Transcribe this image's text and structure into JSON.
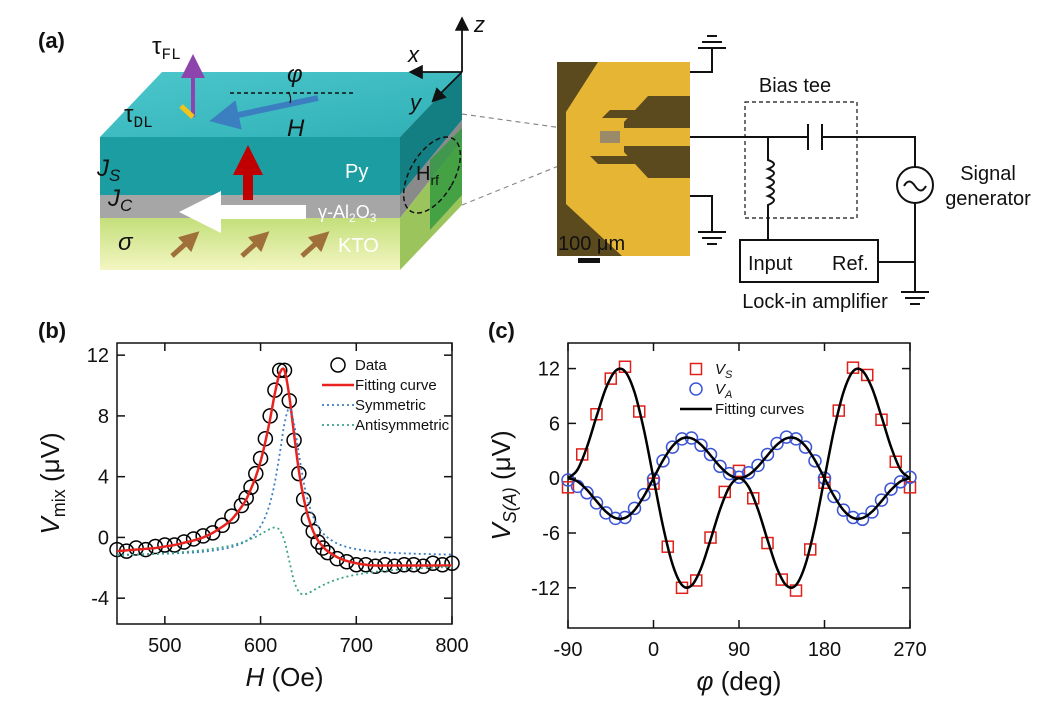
{
  "panels": [
    "(a)",
    "(b)",
    "(c)"
  ],
  "diagram": {
    "tau_fl": {
      "symbol": "τ",
      "sub": "FL"
    },
    "tau_dl": {
      "symbol": "τ",
      "sub": "DL"
    },
    "phi": "φ",
    "h": "H",
    "z": "z",
    "x": "x",
    "y": "y",
    "js": {
      "symbol": "J",
      "sub": "S"
    },
    "jc": {
      "symbol": "J",
      "sub": "C"
    },
    "py": "Py",
    "hrf": {
      "symbol": "H",
      "sub": "rf"
    },
    "alox": {
      "prefix": "γ-Al",
      "sub1": "2",
      "mid": "O",
      "sub2": "3"
    },
    "sigma": "σ",
    "kto": "KTO",
    "scale_bar": "100 μm",
    "bias_tee": "Bias tee",
    "signal_generator": [
      "Signal",
      "generator"
    ],
    "input": "Input",
    "ref": "Ref.",
    "lock_in": "Lock-in amplifier"
  },
  "chart_data": [
    {
      "type": "line",
      "xlabel": {
        "symbol": "H",
        "unit": "(Oe)"
      },
      "ylabel": {
        "symbol": "V",
        "sub": "mix",
        "unit": "(μV)"
      },
      "x": [
        450,
        460,
        470,
        480,
        490,
        500,
        510,
        520,
        530,
        540,
        550,
        560,
        570,
        580,
        585,
        590,
        595,
        600,
        605,
        610,
        615,
        620,
        625,
        630,
        635,
        640,
        645,
        650,
        655,
        660,
        665,
        670,
        680,
        690,
        700,
        710,
        720,
        730,
        740,
        750,
        760,
        770,
        780,
        790,
        800
      ],
      "series": [
        {
          "name": "Data",
          "color": "#000000",
          "marker": "circle",
          "values": [
            -0.8,
            -0.9,
            -0.7,
            -0.8,
            -0.6,
            -0.5,
            -0.5,
            -0.3,
            -0.1,
            0.1,
            0.3,
            0.8,
            1.4,
            2.1,
            2.6,
            3.3,
            4.2,
            5.2,
            6.5,
            8.0,
            9.7,
            11.0,
            11.0,
            9.0,
            6.4,
            4.2,
            2.5,
            1.2,
            0.4,
            -0.3,
            -0.7,
            -1.0,
            -1.4,
            -1.6,
            -1.8,
            -1.8,
            -1.9,
            -1.8,
            -1.9,
            -1.8,
            -1.8,
            -1.9,
            -1.7,
            -1.8,
            -1.7
          ]
        },
        {
          "name": "Fitting curve",
          "color": "#e8231f",
          "line": "solid",
          "values": [
            -0.9,
            -0.85,
            -0.8,
            -0.75,
            -0.7,
            -0.6,
            -0.5,
            -0.35,
            -0.2,
            0.0,
            0.3,
            0.7,
            1.2,
            2.0,
            2.5,
            3.2,
            4.0,
            5.0,
            6.3,
            7.8,
            9.5,
            10.8,
            11.0,
            9.3,
            6.8,
            4.4,
            2.6,
            1.3,
            0.4,
            -0.2,
            -0.6,
            -0.9,
            -1.3,
            -1.55,
            -1.7,
            -1.8,
            -1.85,
            -1.85,
            -1.85,
            -1.85,
            -1.85,
            -1.85,
            -1.85,
            -1.85,
            -1.85
          ]
        },
        {
          "name": "Symmetric",
          "color": "#3d7fc4",
          "line": "dotted",
          "values": [
            -1.13,
            -1.13,
            -1.12,
            -1.1,
            -1.09,
            -1.07,
            -1.05,
            -1.02,
            -0.99,
            -0.94,
            -0.87,
            -0.77,
            -0.63,
            -0.4,
            -0.23,
            -0.01,
            0.3,
            0.74,
            1.37,
            2.29,
            3.65,
            5.5,
            7.5,
            8.5,
            7.5,
            5.5,
            3.65,
            2.29,
            1.37,
            0.74,
            0.3,
            -0.01,
            -0.4,
            -0.63,
            -0.77,
            -0.87,
            -0.94,
            -0.99,
            -1.02,
            -1.05,
            -1.07,
            -1.09,
            -1.1,
            -1.12,
            -1.13
          ]
        },
        {
          "name": "Antisymmetric",
          "color": "#3aa38a",
          "line": "dotted",
          "values": [
            -1.19,
            -1.16,
            -1.14,
            -1.11,
            -1.08,
            -1.05,
            -1.01,
            -0.96,
            -0.9,
            -0.84,
            -0.75,
            -0.65,
            -0.52,
            -0.34,
            -0.23,
            -0.1,
            0.04,
            0.21,
            0.39,
            0.56,
            0.65,
            0.48,
            -0.23,
            -1.55,
            -2.87,
            -3.58,
            -3.75,
            -3.66,
            -3.49,
            -3.31,
            -3.15,
            -3.0,
            -2.76,
            -2.58,
            -2.45,
            -2.35,
            -2.26,
            -2.2,
            -2.14,
            -2.09,
            -2.05,
            -2.02,
            -1.99,
            -1.96,
            -1.94
          ]
        }
      ],
      "xlim": [
        450,
        800
      ],
      "xticks": [
        500,
        600,
        700,
        800
      ],
      "ylim": [
        -5.7,
        12.8
      ],
      "yticks": [
        -4,
        0,
        4,
        8,
        12
      ],
      "legend": "upper right"
    },
    {
      "type": "line",
      "xlabel": {
        "symbol": "φ",
        "unit": "(deg)"
      },
      "ylabel": {
        "symbol": "V",
        "sub": "S(A)",
        "unit": "(μV)"
      },
      "series": [
        {
          "name": "VS",
          "color": "#e0201b",
          "marker": "square",
          "x": [
            -90,
            -75,
            -60,
            -45,
            -30,
            -15,
            0,
            15,
            30,
            45,
            60,
            75,
            90,
            105,
            120,
            135,
            150,
            165,
            180,
            195,
            210,
            225,
            240,
            255,
            270
          ],
          "values": [
            -1.0,
            2.6,
            7.0,
            10.9,
            12.2,
            7.3,
            -0.6,
            -7.5,
            -12.0,
            -11.2,
            -6.5,
            -1.5,
            0.8,
            -2.2,
            -7.1,
            -11.1,
            -12.3,
            -7.8,
            -0.5,
            7.4,
            12.1,
            11.3,
            6.4,
            1.8,
            -1.0
          ]
        },
        {
          "name": "VA",
          "color": "#3b55d6",
          "marker": "circle",
          "x": [
            -90,
            -80,
            -70,
            -60,
            -50,
            -40,
            -30,
            -20,
            -10,
            0,
            10,
            20,
            30,
            40,
            50,
            60,
            70,
            80,
            90,
            100,
            110,
            120,
            130,
            140,
            150,
            160,
            170,
            180,
            190,
            200,
            210,
            220,
            230,
            240,
            250,
            260,
            270
          ],
          "values": [
            -0.2,
            -0.9,
            -1.6,
            -2.7,
            -3.8,
            -4.4,
            -4.3,
            -3.3,
            -1.8,
            -0.1,
            1.9,
            3.4,
            4.3,
            4.4,
            3.6,
            2.6,
            1.3,
            0.5,
            0.1,
            0.6,
            1.4,
            2.6,
            3.8,
            4.5,
            4.3,
            3.4,
            1.9,
            0.0,
            -2.0,
            -3.5,
            -4.3,
            -4.5,
            -3.7,
            -2.4,
            -1.2,
            -0.4,
            0.1
          ]
        },
        {
          "name": "Fitting curves",
          "color": "#000000",
          "line": "solid",
          "x": [
            -90,
            -80,
            -70,
            -60,
            -50,
            -40,
            -30,
            -20,
            -10,
            0,
            10,
            20,
            30,
            40,
            50,
            60,
            70,
            80,
            90,
            100,
            110,
            120,
            130,
            140,
            150,
            160,
            170,
            180,
            190,
            200,
            210,
            220,
            230,
            240,
            250,
            260,
            270
          ],
          "values": [
            0,
            0.93,
            3.43,
            6.75,
            9.87,
            11.76,
            11.7,
            9.42,
            5.26,
            0,
            -5.26,
            -9.42,
            -11.7,
            -11.76,
            -9.87,
            -6.75,
            -3.43,
            -0.93,
            0,
            -0.93,
            -3.43,
            -6.75,
            -9.87,
            -11.76,
            -11.7,
            -9.42,
            -5.26,
            0,
            5.26,
            9.42,
            11.7,
            11.76,
            9.87,
            6.75,
            3.43,
            0.93,
            0
          ]
        },
        {
          "color": "#000000",
          "line": "solid",
          "x": [
            -90,
            -80,
            -70,
            -60,
            -50,
            -40,
            -30,
            -20,
            -10,
            0,
            10,
            20,
            30,
            40,
            50,
            60,
            70,
            80,
            90,
            100,
            110,
            120,
            130,
            140,
            150,
            160,
            170,
            180,
            190,
            200,
            210,
            220,
            230,
            240,
            250,
            260,
            270
          ],
          "values": [
            0,
            -0.35,
            -1.28,
            -2.51,
            -3.67,
            -4.37,
            -4.35,
            -3.5,
            -1.95,
            0,
            1.95,
            3.5,
            4.35,
            4.37,
            3.67,
            2.51,
            1.28,
            0.35,
            0,
            0.35,
            1.28,
            2.51,
            3.67,
            4.37,
            4.35,
            3.5,
            1.95,
            0,
            -1.95,
            -3.5,
            -4.35,
            -4.37,
            -3.67,
            -2.51,
            -1.28,
            -0.35,
            0
          ]
        }
      ],
      "xlim": [
        -90,
        270
      ],
      "xticks": [
        -90,
        0,
        90,
        180,
        270
      ],
      "ylim": [
        -16.4,
        14.8
      ],
      "yticks": [
        -12,
        -6,
        0,
        6,
        12
      ],
      "legend": "upper center"
    }
  ]
}
